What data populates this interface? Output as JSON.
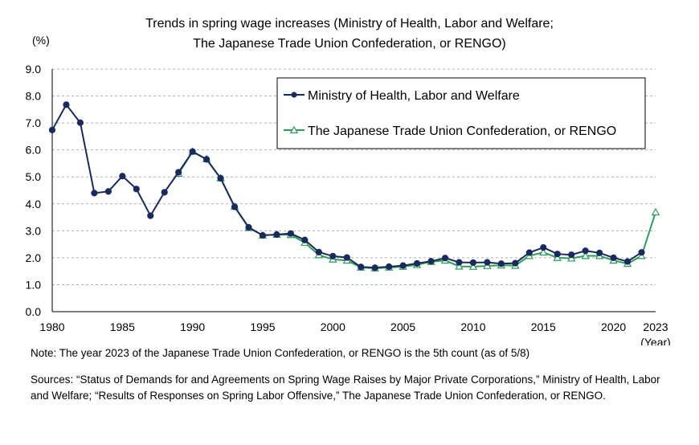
{
  "chart_data": {
    "type": "line",
    "title_line1": "Trends in spring wage increases (Ministry of Health, Labor and Welfare;",
    "title_line2": "The Japanese Trade Union Confederation, or RENGO)",
    "y_unit": "(%)",
    "x_unit": "(Year)",
    "xlim": [
      1980,
      2023
    ],
    "ylim": [
      0,
      9
    ],
    "x_ticks": [
      1980,
      1985,
      1990,
      1995,
      2000,
      2005,
      2010,
      2015,
      2020,
      2023
    ],
    "y_ticks": [
      "0.0",
      "1.0",
      "2.0",
      "3.0",
      "4.0",
      "5.0",
      "6.0",
      "7.0",
      "8.0",
      "9.0"
    ],
    "grid": true,
    "legend_position": "top-right",
    "series": [
      {
        "name": "Ministry of Health, Labor and Welfare",
        "color": "#1a2a5c",
        "marker": "circle",
        "x": [
          1980,
          1981,
          1982,
          1983,
          1984,
          1985,
          1986,
          1987,
          1988,
          1989,
          1990,
          1991,
          1992,
          1993,
          1994,
          1995,
          1996,
          1997,
          1998,
          1999,
          2000,
          2001,
          2002,
          2003,
          2004,
          2005,
          2006,
          2007,
          2008,
          2009,
          2010,
          2011,
          2012,
          2013,
          2014,
          2015,
          2016,
          2017,
          2018,
          2019,
          2020,
          2021,
          2022
        ],
        "values": [
          6.74,
          7.68,
          7.01,
          4.4,
          4.46,
          5.03,
          4.55,
          3.56,
          4.43,
          5.17,
          5.94,
          5.65,
          4.95,
          3.89,
          3.13,
          2.83,
          2.86,
          2.9,
          2.66,
          2.21,
          2.06,
          2.01,
          1.66,
          1.63,
          1.67,
          1.71,
          1.79,
          1.87,
          1.99,
          1.83,
          1.82,
          1.83,
          1.78,
          1.8,
          2.19,
          2.38,
          2.14,
          2.11,
          2.26,
          2.18,
          2.0,
          1.86,
          2.2
        ]
      },
      {
        "name": "The Japanese Trade Union Confederation, or RENGO",
        "color": "#2e9c5a",
        "marker": "triangle",
        "x": [
          1989,
          1990,
          1991,
          1992,
          1993,
          1994,
          1995,
          1996,
          1997,
          1998,
          1999,
          2000,
          2001,
          2002,
          2003,
          2004,
          2005,
          2006,
          2007,
          2008,
          2009,
          2010,
          2011,
          2012,
          2013,
          2014,
          2015,
          2016,
          2017,
          2018,
          2019,
          2020,
          2021,
          2022,
          2023
        ],
        "values": [
          5.12,
          5.94,
          5.66,
          4.95,
          3.9,
          3.11,
          2.83,
          2.86,
          2.85,
          2.56,
          2.1,
          1.94,
          1.9,
          1.64,
          1.61,
          1.64,
          1.67,
          1.74,
          1.85,
          1.9,
          1.68,
          1.67,
          1.7,
          1.72,
          1.71,
          2.07,
          2.2,
          2.0,
          1.98,
          2.07,
          2.07,
          1.9,
          1.78,
          2.07,
          3.69
        ]
      }
    ]
  },
  "note": "Note: The year 2023 of the Japanese Trade Union Confederation, or RENGO is the 5th count (as of 5/8)",
  "sources": "Sources: “Status of Demands for and Agreements on Spring Wage Raises by Major Private Corporations,” Ministry of Health, Labor and Welfare; “Results of Responses on Spring Labor Offensive,” The Japanese Trade Union Confederation, or RENGO."
}
